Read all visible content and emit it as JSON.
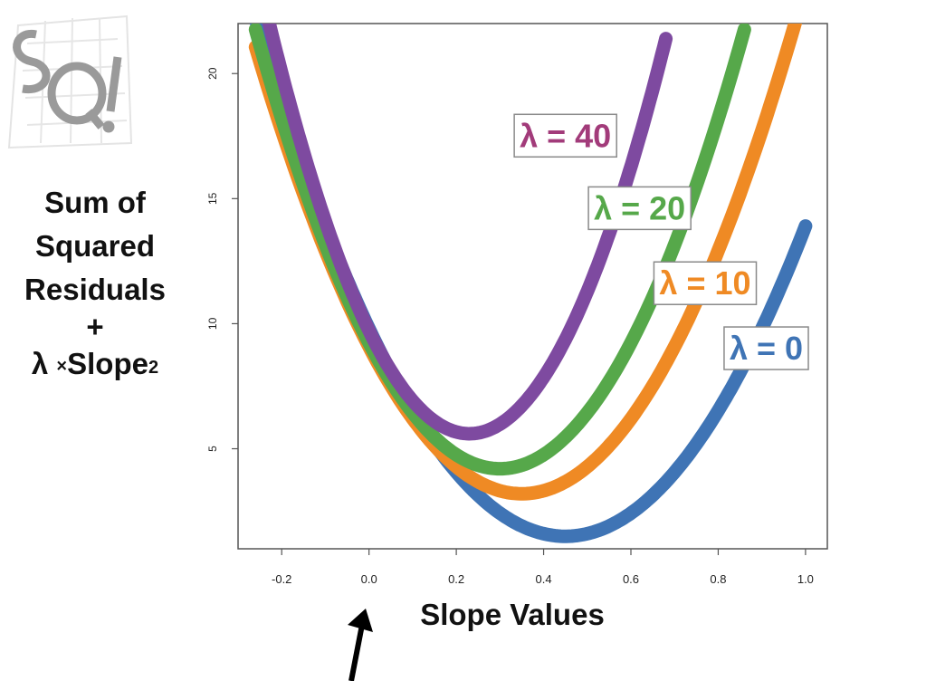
{
  "colors": {
    "lambda_0": "#3f74b5",
    "lambda_10": "#ef8a24",
    "lambda_20": "#56a84a",
    "lambda_40": "#7e4aa0",
    "lambda_40_label": "#a23b7a",
    "axis": "#555555",
    "text": "#111111"
  },
  "ylabel_lines": [
    "Sum of",
    "Squared",
    "Residuals",
    "+"
  ],
  "ylabel_last": {
    "lambda": "λ",
    "times": "×",
    "slope": "Slope",
    "sup": "2"
  },
  "chart_data": {
    "type": "line",
    "title": "",
    "xlabel": "Slope Values",
    "ylabel": "Sum of Squared Residuals + λ × Slope²",
    "xlim": [
      -0.3,
      1.05
    ],
    "ylim": [
      1,
      22
    ],
    "x_ticks": [
      -0.2,
      0.0,
      0.2,
      0.4,
      0.6,
      0.8,
      1.0
    ],
    "x_tick_labels": [
      "-0.2",
      "0.0",
      "0.2",
      "0.4",
      "0.6",
      "0.8",
      "1.0"
    ],
    "y_ticks": [
      5,
      10,
      15,
      20
    ],
    "y_tick_labels": [
      "5",
      "10",
      "15",
      "20"
    ],
    "grid": false,
    "legend": "inline labels",
    "series": [
      {
        "name": "λ = 0",
        "color_key": "lambda_0",
        "label_color_key": "lambda_0",
        "x_range": [
          -0.26,
          1.0
        ],
        "min_x": 0.45,
        "min_y": 1.5,
        "curvature": 41.0,
        "label_at": [
          0.91,
          9.0
        ]
      },
      {
        "name": "λ = 10",
        "color_key": "lambda_10",
        "label_color_key": "lambda_10",
        "x_range": [
          -0.26,
          0.98
        ],
        "min_x": 0.35,
        "min_y": 3.2,
        "curvature": 48.0,
        "label_at": [
          0.77,
          11.6
        ]
      },
      {
        "name": "λ = 20",
        "color_key": "lambda_20",
        "label_color_key": "lambda_20",
        "x_range": [
          -0.26,
          0.86
        ],
        "min_x": 0.3,
        "min_y": 4.2,
        "curvature": 56.0,
        "label_at": [
          0.62,
          14.6
        ]
      },
      {
        "name": "λ = 40",
        "color_key": "lambda_40",
        "label_color_key": "lambda_40_label",
        "x_range": [
          -0.24,
          0.68
        ],
        "min_x": 0.23,
        "min_y": 5.6,
        "curvature": 78.0,
        "label_at": [
          0.45,
          17.5
        ]
      }
    ]
  }
}
